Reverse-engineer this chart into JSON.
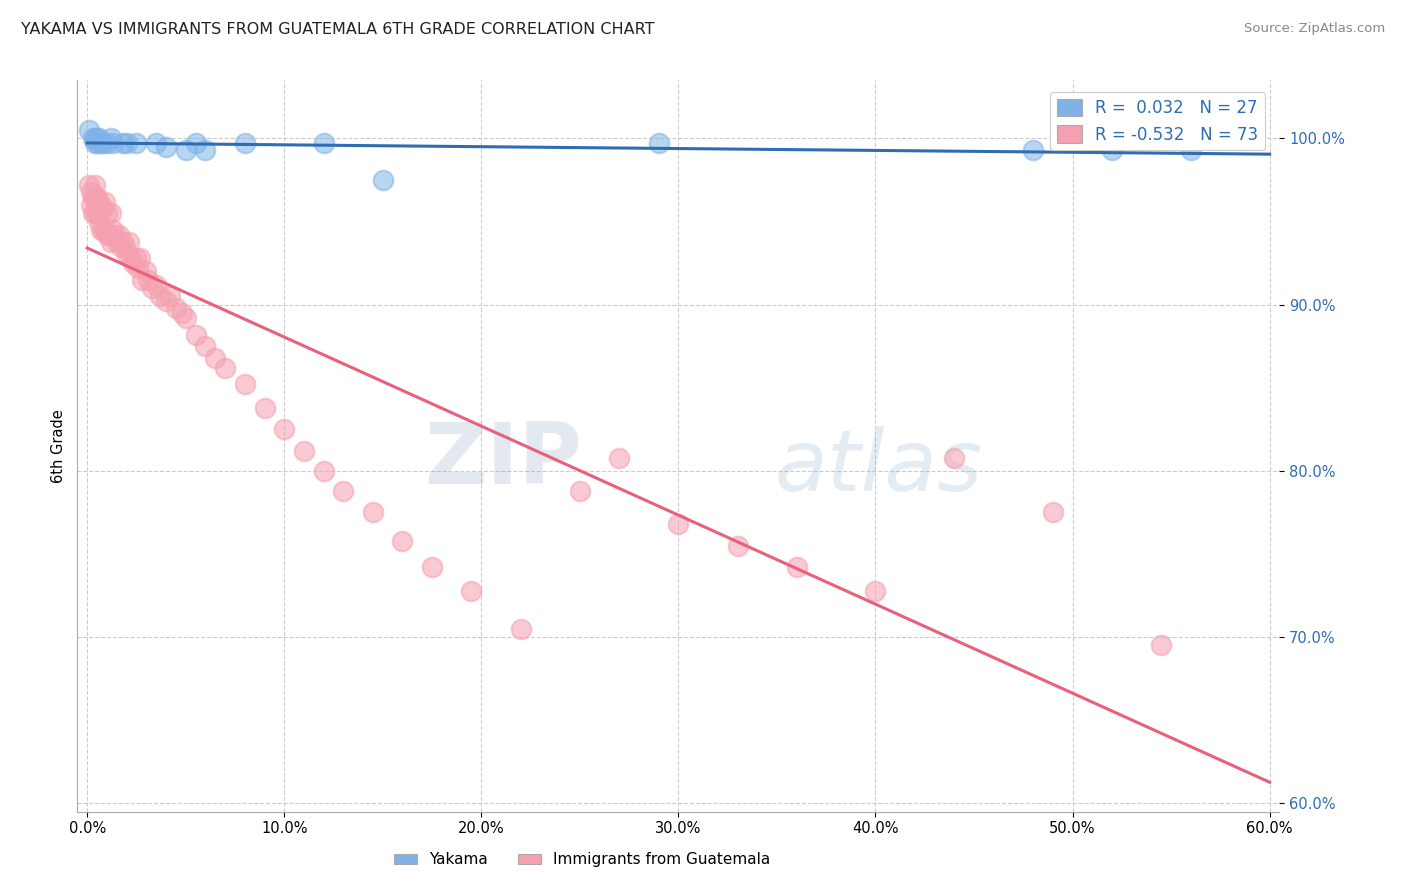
{
  "title": "YAKAMA VS IMMIGRANTS FROM GUATEMALA 6TH GRADE CORRELATION CHART",
  "source": "Source: ZipAtlas.com",
  "ylabel": "6th Grade",
  "x_ticks": [
    0.0,
    0.1,
    0.2,
    0.3,
    0.4,
    0.5,
    0.6
  ],
  "x_tick_labels": [
    "0.0%",
    "10.0%",
    "20.0%",
    "30.0%",
    "40.0%",
    "50.0%",
    "60.0%"
  ],
  "y_ticks": [
    0.6,
    0.7,
    0.8,
    0.9,
    1.0
  ],
  "y_tick_labels": [
    "60.0%",
    "70.0%",
    "80.0%",
    "90.0%",
    "100.0%"
  ],
  "xlim": [
    -0.005,
    0.605
  ],
  "ylim": [
    0.595,
    1.035
  ],
  "blue_color": "#7FB3E8",
  "pink_color": "#F5A0B0",
  "blue_line_color": "#2E6DB4",
  "pink_line_color": "#E8607A",
  "R_blue": 0.032,
  "N_blue": 27,
  "R_pink": -0.532,
  "N_pink": 73,
  "legend_label_blue": "Yakama",
  "legend_label_pink": "Immigrants from Guatemala",
  "watermark_zip": "ZIP",
  "watermark_atlas": "atlas",
  "background_color": "#FFFFFF",
  "blue_points_x": [
    0.001,
    0.003,
    0.004,
    0.004,
    0.005,
    0.005,
    0.006,
    0.007,
    0.008,
    0.01,
    0.012,
    0.013,
    0.018,
    0.02,
    0.025,
    0.035,
    0.04,
    0.05,
    0.055,
    0.06,
    0.08,
    0.12,
    0.15,
    0.29,
    0.48,
    0.52,
    0.56
  ],
  "blue_points_y": [
    1.005,
    1.0,
    1.0,
    0.997,
    1.0,
    0.997,
    1.0,
    0.997,
    0.997,
    0.997,
    1.0,
    0.997,
    0.997,
    0.997,
    0.997,
    0.997,
    0.995,
    0.993,
    0.997,
    0.993,
    0.997,
    0.997,
    0.975,
    0.997,
    0.993,
    0.993,
    0.993
  ],
  "pink_points_x": [
    0.001,
    0.002,
    0.002,
    0.003,
    0.003,
    0.004,
    0.004,
    0.004,
    0.005,
    0.005,
    0.005,
    0.006,
    0.006,
    0.007,
    0.007,
    0.008,
    0.008,
    0.009,
    0.009,
    0.01,
    0.01,
    0.011,
    0.012,
    0.012,
    0.013,
    0.014,
    0.015,
    0.016,
    0.017,
    0.018,
    0.019,
    0.02,
    0.021,
    0.022,
    0.023,
    0.025,
    0.026,
    0.027,
    0.028,
    0.03,
    0.031,
    0.033,
    0.035,
    0.037,
    0.04,
    0.042,
    0.045,
    0.048,
    0.05,
    0.055,
    0.06,
    0.065,
    0.07,
    0.08,
    0.09,
    0.1,
    0.11,
    0.12,
    0.13,
    0.145,
    0.16,
    0.175,
    0.195,
    0.22,
    0.25,
    0.27,
    0.3,
    0.33,
    0.36,
    0.4,
    0.44,
    0.49,
    0.545
  ],
  "pink_points_y": [
    0.972,
    0.968,
    0.96,
    0.965,
    0.955,
    0.972,
    0.965,
    0.955,
    0.965,
    0.955,
    0.962,
    0.95,
    0.962,
    0.958,
    0.945,
    0.958,
    0.945,
    0.962,
    0.945,
    0.942,
    0.955,
    0.942,
    0.955,
    0.938,
    0.945,
    0.942,
    0.938,
    0.942,
    0.935,
    0.938,
    0.935,
    0.93,
    0.938,
    0.928,
    0.925,
    0.928,
    0.922,
    0.928,
    0.915,
    0.92,
    0.915,
    0.91,
    0.912,
    0.905,
    0.902,
    0.905,
    0.898,
    0.895,
    0.892,
    0.882,
    0.875,
    0.868,
    0.862,
    0.852,
    0.838,
    0.825,
    0.812,
    0.8,
    0.788,
    0.775,
    0.758,
    0.742,
    0.728,
    0.705,
    0.788,
    0.808,
    0.768,
    0.755,
    0.742,
    0.728,
    0.808,
    0.775,
    0.695
  ]
}
